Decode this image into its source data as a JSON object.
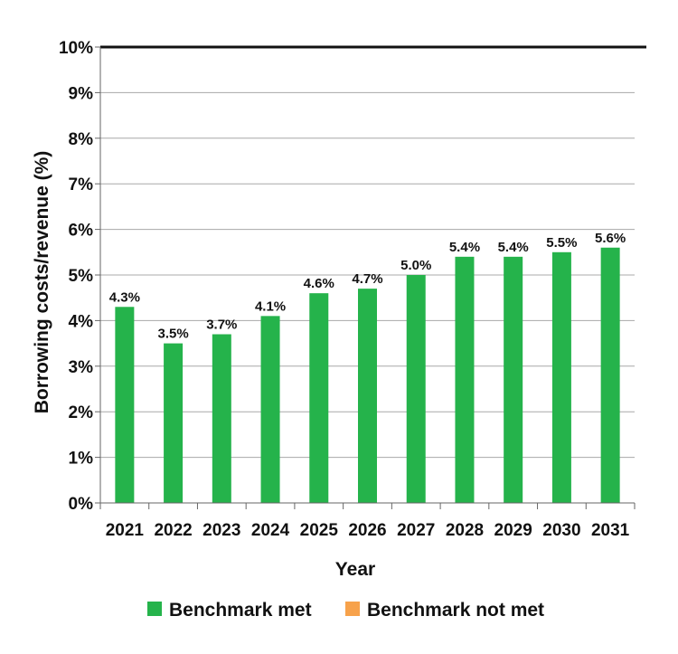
{
  "chart_data": {
    "type": "bar",
    "title": "",
    "xlabel": "Year",
    "ylabel": "Borrowing costs/revenue (%)",
    "ylim": [
      0,
      10
    ],
    "yticks": [
      "0%",
      "1%",
      "2%",
      "3%",
      "4%",
      "5%",
      "6%",
      "7%",
      "8%",
      "9%",
      "10%"
    ],
    "grid": true,
    "legend_position": "bottom",
    "categories": [
      "2021",
      "2022",
      "2023",
      "2024",
      "2025",
      "2026",
      "2027",
      "2028",
      "2029",
      "2030",
      "2031"
    ],
    "values": [
      4.3,
      3.5,
      3.7,
      4.1,
      4.6,
      4.7,
      5.0,
      5.4,
      5.4,
      5.5,
      5.6
    ],
    "labels": [
      "4.3%",
      "3.5%",
      "3.7%",
      "4.1%",
      "4.6%",
      "4.7%",
      "5.0%",
      "5.4%",
      "5.4%",
      "5.5%",
      "5.6%"
    ],
    "status": [
      "met",
      "met",
      "met",
      "met",
      "met",
      "met",
      "met",
      "met",
      "met",
      "met",
      "met"
    ],
    "legend": [
      {
        "key": "met",
        "label": "Benchmark met",
        "color": "#25b34b"
      },
      {
        "key": "not_met",
        "label": "Benchmark not met",
        "color": "#f7a24b"
      }
    ]
  }
}
